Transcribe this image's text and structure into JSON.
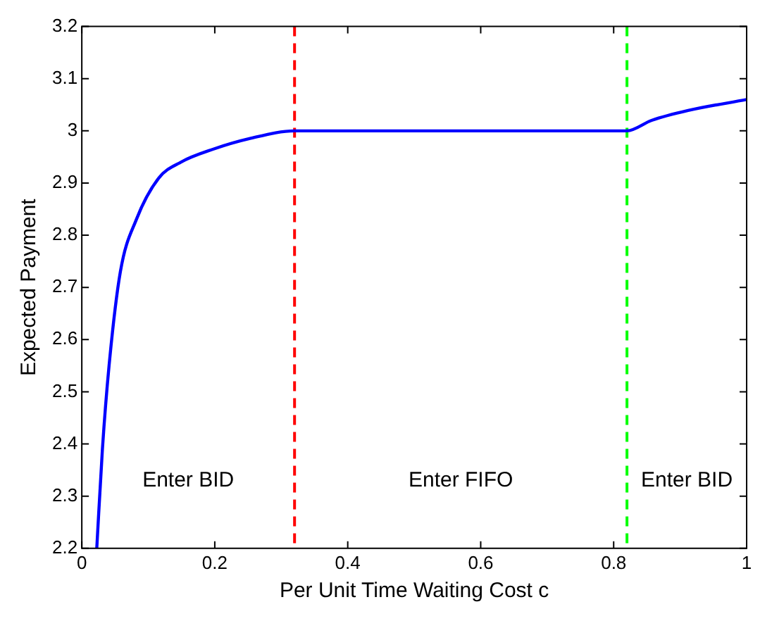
{
  "chart_data": {
    "type": "line",
    "xlabel": "Per Unit Time Waiting Cost c",
    "ylabel": "Expected Payment",
    "xlim": [
      0,
      1
    ],
    "ylim": [
      2.2,
      3.2
    ],
    "xticks": [
      0,
      0.2,
      0.4,
      0.6,
      0.8,
      1
    ],
    "yticks": [
      2.2,
      2.3,
      2.4,
      2.5,
      2.6,
      2.7,
      2.8,
      2.9,
      3,
      3.1,
      3.2
    ],
    "grid": false,
    "legend": false,
    "marker": "none",
    "line_style": "solid",
    "series": [
      {
        "color": "#0000ff",
        "x": [
          0.0225,
          0.031,
          0.041,
          0.058,
          0.082,
          0.116,
          0.149,
          0.198,
          0.252,
          0.32,
          0.82,
          0.857,
          0.912,
          1
        ],
        "values": [
          2.2,
          2.39,
          2.55,
          2.73,
          2.83,
          2.91,
          2.94,
          2.965,
          2.985,
          3,
          3,
          3.02,
          3.039,
          3.06
        ]
      }
    ],
    "ref_lines": [
      {
        "axis": "x",
        "value": 0.32,
        "color": "#ff0000",
        "line_style": "dashed"
      },
      {
        "axis": "x",
        "value": 0.82,
        "color": "#00ff00",
        "line_style": "dashed"
      }
    ],
    "annotations": [
      "Enter BID",
      "Enter FIFO",
      "Enter BID"
    ]
  }
}
